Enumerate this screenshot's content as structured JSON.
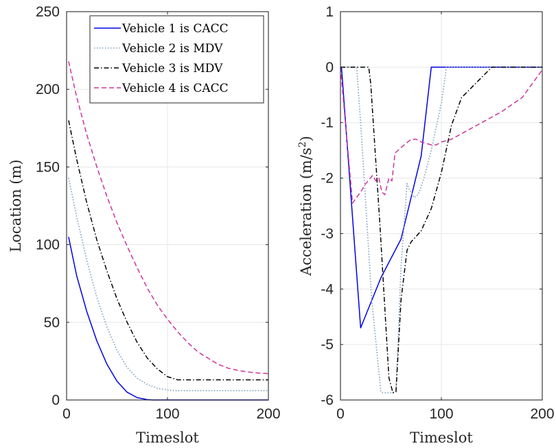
{
  "chart_data": [
    {
      "type": "line",
      "xlabel": "Timeslot",
      "ylabel": "Location (m)",
      "xlim": [
        0,
        200
      ],
      "ylim": [
        0,
        250
      ],
      "xticks": [
        "0",
        "100",
        "200"
      ],
      "yticks": [
        "0",
        "50",
        "100",
        "150",
        "200",
        "250"
      ],
      "grid": true,
      "legend": "top-right",
      "series": [
        {
          "name": "Vehicle 1 is CACC",
          "color": "#0000e6",
          "dash": "solid",
          "x": [
            2,
            10,
            20,
            30,
            40,
            50,
            60,
            70,
            80,
            85,
            90,
            100,
            150,
            200
          ],
          "y": [
            105,
            80,
            57,
            38,
            23,
            12,
            5,
            1.5,
            0.2,
            0,
            0,
            0,
            0,
            0
          ]
        },
        {
          "name": "Vehicle 2 is MDV",
          "color": "#7f9fbf",
          "dash": "dotted",
          "x": [
            2,
            10,
            20,
            30,
            40,
            50,
            60,
            70,
            80,
            90,
            100,
            105,
            150,
            200
          ],
          "y": [
            143,
            118,
            90,
            66,
            47,
            32,
            21,
            14,
            10,
            7.5,
            6.5,
            6,
            6,
            6
          ]
        },
        {
          "name": "Vehicle 3 is MDV",
          "color": "#000000",
          "dash": "dashdot",
          "x": [
            2,
            10,
            20,
            30,
            40,
            50,
            60,
            70,
            80,
            90,
            100,
            110,
            120,
            150,
            200
          ],
          "y": [
            180,
            155,
            127,
            103,
            83,
            65,
            50,
            37,
            27,
            20,
            15,
            13,
            13,
            13,
            13
          ]
        },
        {
          "name": "Vehicle 4 is CACC",
          "color": "#cc3399",
          "dash": "dashed",
          "x": [
            2,
            10,
            20,
            30,
            40,
            50,
            60,
            70,
            80,
            90,
            100,
            110,
            120,
            130,
            140,
            150,
            160,
            170,
            180,
            190,
            200
          ],
          "y": [
            218,
            195,
            171,
            150,
            131,
            114,
            99,
            85,
            72,
            61,
            52,
            44,
            37,
            31,
            27,
            23,
            20.5,
            19,
            18,
            17.3,
            17
          ]
        }
      ]
    },
    {
      "type": "line",
      "xlabel": "Timeslot",
      "ylabel": "Acceleration (m/s",
      "ylabel_sup": "2",
      "ylabel_end": ")",
      "xlim": [
        0,
        200
      ],
      "ylim": [
        -6,
        1
      ],
      "xticks": [
        "0",
        "100",
        "200"
      ],
      "yticks": [
        "-6",
        "-5",
        "-4",
        "-3",
        "-2",
        "-1",
        "0",
        "1"
      ],
      "grid": true,
      "series": [
        {
          "name": "Vehicle 1 is CACC",
          "color": "#0000e6",
          "dash": "solid",
          "x": [
            1,
            20,
            40,
            60,
            80,
            90,
            100,
            150,
            200
          ],
          "y": [
            0,
            -4.7,
            -3.8,
            -3.1,
            -1.6,
            0,
            0,
            0,
            0
          ]
        },
        {
          "name": "Vehicle 2 is MDV",
          "color": "#7f9fbf",
          "dash": "dotted",
          "x": [
            0,
            16,
            20,
            31,
            40,
            42,
            45,
            50,
            55,
            60,
            66,
            68,
            73,
            77,
            82,
            90,
            100,
            105,
            150,
            200
          ],
          "y": [
            0,
            0,
            -1.0,
            -4.2,
            -5.85,
            -5.87,
            -5.87,
            -5.87,
            -5.85,
            -3.6,
            -2.1,
            -2.2,
            -2.35,
            -2.3,
            -2.05,
            -1.5,
            -0.65,
            0,
            0,
            0
          ]
        },
        {
          "name": "Vehicle 3 is MDV",
          "color": "#000000",
          "dash": "dashdot",
          "x": [
            0,
            28,
            30,
            39,
            48,
            52,
            55,
            60,
            66,
            70,
            80,
            90,
            100,
            110,
            120,
            150,
            200
          ],
          "y": [
            0,
            0,
            -0.3,
            -2.8,
            -5.6,
            -5.87,
            -5.85,
            -4.2,
            -3.3,
            -3.15,
            -2.95,
            -2.55,
            -1.9,
            -1.05,
            -0.55,
            0,
            0
          ]
        },
        {
          "name": "Vehicle 4 is CACC",
          "color": "#cc3399",
          "dash": "dashed",
          "x": [
            0,
            12,
            20,
            25,
            32,
            35,
            38,
            41,
            44,
            48,
            51,
            54,
            60,
            70,
            75,
            80,
            90,
            95,
            100,
            110,
            120,
            140,
            160,
            180,
            190,
            200
          ],
          "y": [
            0,
            -2.45,
            -2.25,
            -2.1,
            -1.95,
            -2.05,
            -2.0,
            -2.25,
            -2.3,
            -2.0,
            -2.05,
            -1.55,
            -1.45,
            -1.3,
            -1.3,
            -1.35,
            -1.4,
            -1.4,
            -1.35,
            -1.3,
            -1.2,
            -1.0,
            -0.8,
            -0.55,
            -0.3,
            -0.05
          ]
        }
      ]
    }
  ]
}
